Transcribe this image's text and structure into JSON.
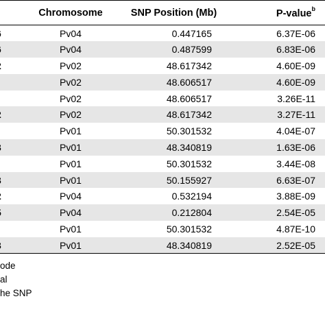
{
  "table": {
    "headers": {
      "lead": "",
      "chromosome": "Chromosome",
      "snp_position": "SNP Position (Mb)",
      "pvalue": "P-value",
      "pvalue_sup": "b"
    },
    "rows": [
      {
        "lead": "6",
        "chromosome": "Pv04",
        "position": "0.447165",
        "pvalue": "6.37E-06"
      },
      {
        "lead": "6",
        "chromosome": "Pv04",
        "position": "0.487599",
        "pvalue": "6.83E-06"
      },
      {
        "lead": "2",
        "chromosome": "Pv02",
        "position": "48.617342",
        "pvalue": "4.60E-09"
      },
      {
        "lead": "",
        "chromosome": "Pv02",
        "position": "48.606517",
        "pvalue": "4.60E-09"
      },
      {
        "lead": "",
        "chromosome": "Pv02",
        "position": "48.606517",
        "pvalue": "3.26E-11"
      },
      {
        "lead": "2",
        "chromosome": "Pv02",
        "position": "48.617342",
        "pvalue": "3.27E-11"
      },
      {
        "lead": "",
        "chromosome": "Pv01",
        "position": "50.301532",
        "pvalue": "4.04E-07"
      },
      {
        "lead": "3",
        "chromosome": "Pv01",
        "position": "48.340819",
        "pvalue": "1.63E-06"
      },
      {
        "lead": "",
        "chromosome": "Pv01",
        "position": "50.301532",
        "pvalue": "3.44E-08"
      },
      {
        "lead": "3",
        "chromosome": "Pv01",
        "position": "50.155927",
        "pvalue": "6.63E-07"
      },
      {
        "lead": "2",
        "chromosome": "Pv04",
        "position": "0.532194",
        "pvalue": "3.88E-09"
      },
      {
        "lead": "5",
        "chromosome": "Pv04",
        "position": "0.212804",
        "pvalue": "2.54E-05"
      },
      {
        "lead": "",
        "chromosome": "Pv01",
        "position": "50.301532",
        "pvalue": "4.87E-10"
      },
      {
        "lead": "3",
        "chromosome": "Pv01",
        "position": "48.340819",
        "pvalue": "2.52E-05"
      }
    ]
  },
  "footnotes": [
    "ode",
    "al",
    "he SNP"
  ],
  "colors": {
    "row_shade": "#e6e6e6",
    "rule": "#000000"
  }
}
